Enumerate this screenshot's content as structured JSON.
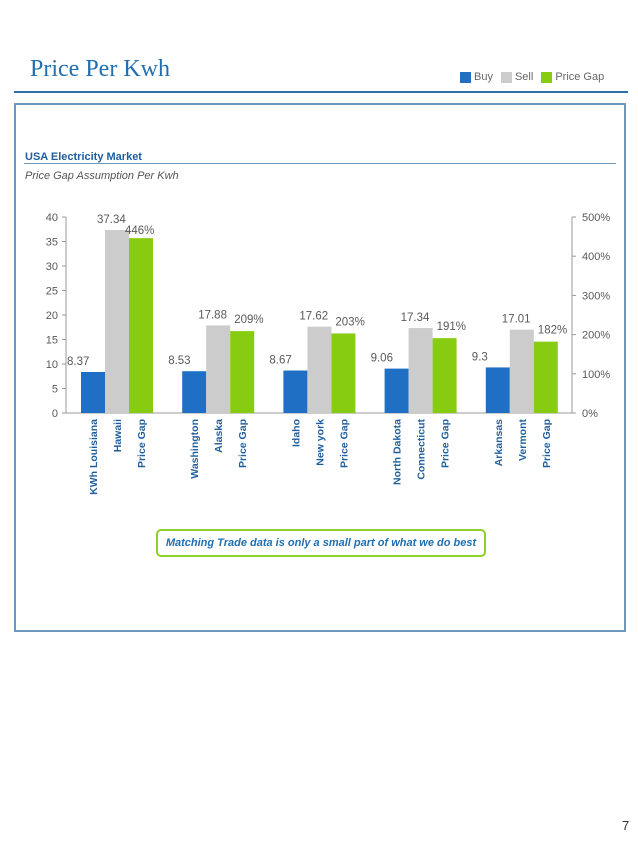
{
  "header": {
    "title": "Price Per Kwh"
  },
  "legend": {
    "items": [
      {
        "label": "Buy",
        "color": "#1f6fc5"
      },
      {
        "label": "Sell",
        "color": "#cccccc"
      },
      {
        "label": "Price Gap",
        "color": "#88cc11"
      }
    ]
  },
  "panel": {
    "title": "USA Electricity Market",
    "subtitle": "Price Gap Assumption Per Kwh",
    "callout": "Matching Trade data is only a small part of what we do best"
  },
  "page_number": "7",
  "chart_data": {
    "type": "bar",
    "left_axis": {
      "ticks": [
        "0",
        "5",
        "10",
        "15",
        "20",
        "25",
        "30",
        "35",
        "40"
      ],
      "range": [
        0,
        40
      ]
    },
    "right_axis": {
      "ticks": [
        "0%",
        "100%",
        "200%",
        "300%",
        "400%",
        "500%"
      ],
      "range": [
        0,
        500
      ]
    },
    "groups": [
      {
        "buy_label": "KWh Louisiana",
        "sell_label": "Hawaii",
        "gap_label": "Price Gap",
        "buy": 8.37,
        "sell": 37.34,
        "gap": 446,
        "buy_text": "8.37",
        "sell_text": "37.34",
        "gap_text": "446%"
      },
      {
        "buy_label": "Washington",
        "sell_label": "Alaska",
        "gap_label": "Price Gap",
        "buy": 8.53,
        "sell": 17.88,
        "gap": 209,
        "buy_text": "8.53",
        "sell_text": "17.88",
        "gap_text": "209%"
      },
      {
        "buy_label": "Idaho",
        "sell_label": "New york",
        "gap_label": "Price Gap",
        "buy": 8.67,
        "sell": 17.62,
        "gap": 203,
        "buy_text": "8.67",
        "sell_text": "17.62",
        "gap_text": "203%"
      },
      {
        "buy_label": "North Dakota",
        "sell_label": "Connecticut",
        "gap_label": "Price Gap",
        "buy": 9.06,
        "sell": 17.34,
        "gap": 191,
        "buy_text": "9.06",
        "sell_text": "17.34",
        "gap_text": "191%"
      },
      {
        "buy_label": "Arkansas",
        "sell_label": "Vermont",
        "gap_label": "Price Gap",
        "buy": 9.3,
        "sell": 17.01,
        "gap": 182,
        "buy_text": "9.3",
        "sell_text": "17.01",
        "gap_text": "182%"
      }
    ]
  }
}
